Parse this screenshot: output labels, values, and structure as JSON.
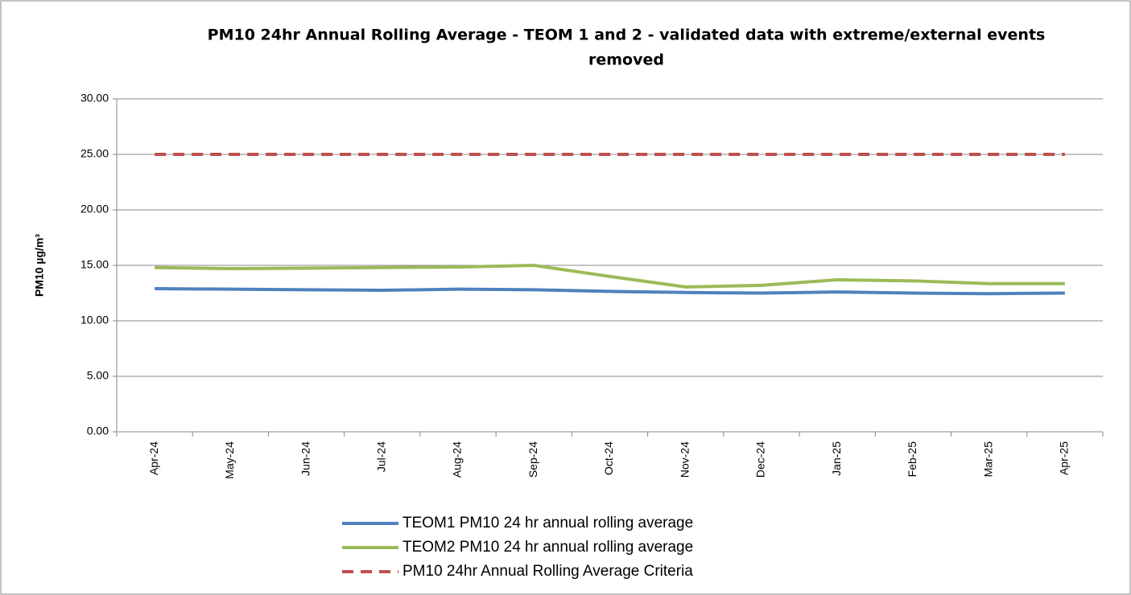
{
  "chart_data": {
    "type": "line",
    "title": [
      "PM10 24hr Annual Rolling Average - TEOM 1 and 2 - validated data with extreme/external events",
      "removed"
    ],
    "y_label": "PM10 µg/m³",
    "categories": [
      "Apr-24",
      "May-24",
      "Jun-24",
      "Jul-24",
      "Aug-24",
      "Sep-24",
      "Oct-24",
      "Nov-24",
      "Dec-24",
      "Jan-25",
      "Feb-25",
      "Mar-25",
      "Apr-25"
    ],
    "series": [
      {
        "name": "TEOM1 PM10 24 hr annual rolling average",
        "color": "#4f81bd",
        "dashed": false,
        "values": [
          12.9,
          12.85,
          12.8,
          12.75,
          12.85,
          12.8,
          12.65,
          12.55,
          12.5,
          12.6,
          12.5,
          12.45,
          12.5
        ]
      },
      {
        "name": "TEOM2 PM10 24 hr annual rolling average",
        "color": "#9bbb59",
        "dashed": false,
        "values": [
          14.8,
          14.7,
          14.75,
          14.8,
          14.85,
          15.0,
          14.0,
          13.05,
          13.2,
          13.7,
          13.6,
          13.35,
          13.35
        ]
      },
      {
        "name": "PM10 24hr Annual Rolling Average Criteria",
        "color": "#c0504d",
        "dashed": true,
        "values": [
          25,
          25,
          25,
          25,
          25,
          25,
          25,
          25,
          25,
          25,
          25,
          25,
          25
        ]
      }
    ],
    "ylim": [
      0,
      30
    ],
    "yticks": [
      {
        "value": 0,
        "label": "0.00"
      },
      {
        "value": 5,
        "label": "5.00"
      },
      {
        "value": 10,
        "label": "10.00"
      },
      {
        "value": 15,
        "label": "15.00"
      },
      {
        "value": 20,
        "label": "20.00"
      },
      {
        "value": 25,
        "label": "25.00"
      },
      {
        "value": 30,
        "label": "30.00"
      }
    ],
    "grid": true,
    "legend": "bottom"
  }
}
